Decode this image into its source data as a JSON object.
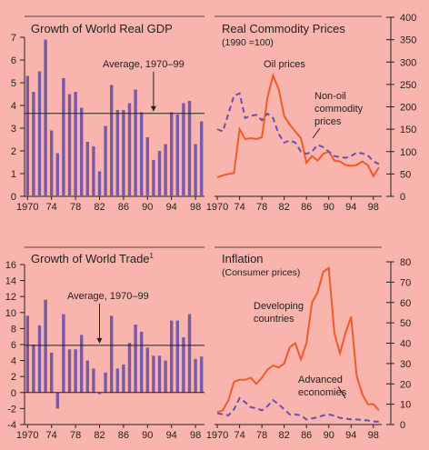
{
  "chart_data": [
    {
      "id": "gdp",
      "type": "bar",
      "title": "Growth of World Real GDP",
      "x": [
        1970,
        1971,
        1972,
        1973,
        1974,
        1975,
        1976,
        1977,
        1978,
        1979,
        1980,
        1981,
        1982,
        1983,
        1984,
        1985,
        1986,
        1987,
        1988,
        1989,
        1990,
        1991,
        1992,
        1993,
        1994,
        1995,
        1996,
        1997,
        1998,
        1999
      ],
      "values": [
        5.3,
        4.6,
        5.5,
        6.9,
        2.9,
        1.9,
        5.2,
        4.5,
        4.6,
        3.9,
        2.4,
        2.2,
        1.1,
        3.1,
        4.9,
        3.8,
        3.8,
        4.1,
        4.7,
        3.7,
        2.6,
        1.6,
        2.0,
        2.3,
        3.7,
        3.6,
        4.1,
        4.2,
        2.3,
        3.3
      ],
      "average": 3.65,
      "average_label": "Average, 1970–99",
      "ylim": [
        0,
        7
      ],
      "yticks": [
        0,
        1,
        2,
        3,
        4,
        5,
        6,
        7
      ],
      "xticks": [
        1970,
        1974,
        1978,
        1982,
        1986,
        1990,
        1994,
        1998
      ],
      "xtick_labels": [
        "1970",
        "74",
        "78",
        "82",
        "86",
        "90",
        "94",
        "98"
      ]
    },
    {
      "id": "commodity",
      "type": "line",
      "title": "Real Commodity Prices",
      "subtitle": "(1990 =100)",
      "series": [
        {
          "name": "Oil prices",
          "x": [
            1970,
            1971,
            1972,
            1973,
            1974,
            1975,
            1976,
            1977,
            1978,
            1979,
            1980,
            1981,
            1982,
            1983,
            1984,
            1985,
            1986,
            1987,
            1988,
            1989,
            1990,
            1991,
            1992,
            1993,
            1994,
            1995,
            1996,
            1997,
            1998,
            1999
          ],
          "values": [
            42,
            47,
            50,
            52,
            150,
            128,
            130,
            128,
            132,
            220,
            270,
            240,
            180,
            160,
            145,
            130,
            75,
            90,
            80,
            95,
            100,
            80,
            78,
            70,
            68,
            70,
            78,
            70,
            45,
            65
          ]
        },
        {
          "name": "Non-oil commodity prices",
          "x": [
            1970,
            1971,
            1972,
            1973,
            1974,
            1975,
            1976,
            1977,
            1978,
            1979,
            1980,
            1981,
            1982,
            1983,
            1984,
            1985,
            1986,
            1987,
            1988,
            1989,
            1990,
            1991,
            1992,
            1993,
            1994,
            1995,
            1996,
            1997,
            1998,
            1999
          ],
          "values": [
            150,
            145,
            185,
            225,
            230,
            175,
            180,
            182,
            170,
            185,
            175,
            140,
            120,
            125,
            120,
            100,
            95,
            100,
            115,
            110,
            100,
            90,
            88,
            86,
            90,
            98,
            96,
            92,
            78,
            72
          ]
        }
      ],
      "ylim": [
        0,
        400
      ],
      "yticks": [
        0,
        50,
        100,
        150,
        200,
        250,
        300,
        350,
        400
      ],
      "xticks": [
        1970,
        1974,
        1978,
        1982,
        1986,
        1990,
        1994,
        1998
      ],
      "xtick_labels": [
        "1970",
        "74",
        "78",
        "82",
        "86",
        "90",
        "94",
        "98"
      ]
    },
    {
      "id": "trade",
      "type": "bar",
      "title": "Growth of World Trade",
      "title_sup": "1",
      "x": [
        1970,
        1971,
        1972,
        1973,
        1974,
        1975,
        1976,
        1977,
        1978,
        1979,
        1980,
        1981,
        1982,
        1983,
        1984,
        1985,
        1986,
        1987,
        1988,
        1989,
        1990,
        1991,
        1992,
        1993,
        1994,
        1995,
        1996,
        1997,
        1998,
        1999
      ],
      "values": [
        9.6,
        6.0,
        8.4,
        11.6,
        5.0,
        -2.0,
        9.8,
        5.4,
        5.4,
        7.2,
        4.0,
        3.0,
        -0.2,
        2.5,
        9.6,
        3.0,
        3.5,
        6.2,
        8.5,
        7.6,
        5.6,
        4.6,
        4.6,
        4.0,
        9.0,
        9.0,
        6.9,
        9.8,
        4.2,
        4.5
      ],
      "average": 5.9,
      "average_label": "Average, 1970–99",
      "ylim": [
        -4,
        16
      ],
      "yticks": [
        -4,
        -2,
        0,
        2,
        4,
        6,
        8,
        10,
        12,
        14,
        16
      ],
      "xticks": [
        1970,
        1974,
        1978,
        1982,
        1986,
        1990,
        1994,
        1998
      ],
      "xtick_labels": [
        "1970",
        "74",
        "78",
        "82",
        "86",
        "90",
        "94",
        "98"
      ]
    },
    {
      "id": "inflation",
      "type": "line",
      "title": "Inflation",
      "subtitle": "(Consumer prices)",
      "series": [
        {
          "name": "Developing countries",
          "x": [
            1970,
            1971,
            1972,
            1973,
            1974,
            1975,
            1976,
            1977,
            1978,
            1979,
            1980,
            1981,
            1982,
            1983,
            1984,
            1985,
            1986,
            1987,
            1988,
            1989,
            1990,
            1991,
            1992,
            1993,
            1994,
            1995,
            1996,
            1997,
            1998,
            1999
          ],
          "values": [
            6,
            7,
            12,
            21,
            22,
            22,
            23,
            20,
            23,
            27,
            29,
            28,
            30,
            38,
            40,
            32,
            40,
            60,
            65,
            75,
            77,
            45,
            35,
            45,
            53,
            24,
            15,
            10,
            10,
            7
          ]
        },
        {
          "name": "Advanced economies",
          "x": [
            1970,
            1971,
            1972,
            1973,
            1974,
            1975,
            1976,
            1977,
            1978,
            1979,
            1980,
            1981,
            1982,
            1983,
            1984,
            1985,
            1986,
            1987,
            1988,
            1989,
            1990,
            1991,
            1992,
            1993,
            1994,
            1995,
            1996,
            1997,
            1998,
            1999
          ],
          "values": [
            5.5,
            5.0,
            4.5,
            7.5,
            13,
            11,
            8.5,
            8,
            7,
            9,
            12,
            10,
            7.5,
            5,
            5,
            4.5,
            2.5,
            3,
            3.5,
            4.5,
            5,
            4.3,
            3.3,
            3,
            2.5,
            2.5,
            2.3,
            2,
            1.5,
            1.4
          ]
        }
      ],
      "ylim": [
        0,
        80
      ],
      "yticks": [
        0,
        10,
        20,
        30,
        40,
        50,
        60,
        70,
        80
      ],
      "xticks": [
        1970,
        1974,
        1978,
        1982,
        1986,
        1990,
        1994,
        1998
      ],
      "xtick_labels": [
        "1970",
        "74",
        "78",
        "82",
        "86",
        "90",
        "94",
        "98"
      ]
    }
  ],
  "labels": {
    "oil": "Oil prices",
    "nonoil_1": "Non-oil",
    "nonoil_2": "commodity",
    "nonoil_3": "prices",
    "dev_1": "Developing",
    "dev_2": "countries",
    "adv_1": "Advanced",
    "adv_2": "economies"
  }
}
